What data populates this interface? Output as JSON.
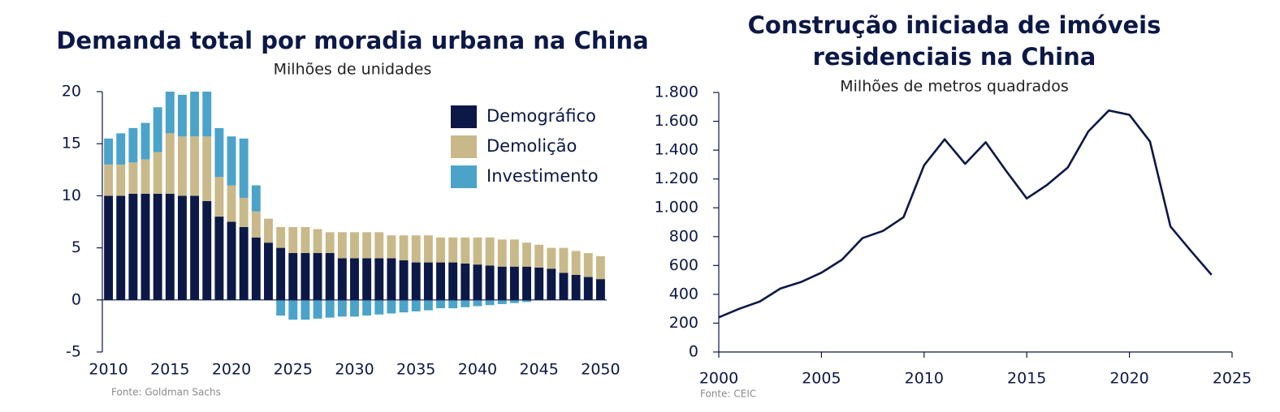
{
  "chart_data": [
    {
      "type": "bar",
      "title": "Demanda total por moradia urbana na China",
      "subtitle": "Milhões de unidades",
      "source": "Fonte: Goldman Sachs",
      "categories": [
        "2010",
        null,
        null,
        null,
        null,
        "2015",
        null,
        null,
        null,
        null,
        "2020",
        null,
        null,
        null,
        null,
        "2025",
        null,
        null,
        null,
        null,
        "2030",
        null,
        null,
        null,
        null,
        "2035",
        null,
        null,
        null,
        null,
        "2040",
        null,
        null,
        null,
        null,
        "2045",
        null,
        null,
        null,
        null,
        "2050"
      ],
      "series": [
        {
          "name": "Demográfico",
          "color": "#0c1846",
          "values": [
            10,
            10,
            10.2,
            10.2,
            10.2,
            10.2,
            10,
            10,
            9.5,
            8,
            7.5,
            7,
            6,
            5.5,
            5,
            4.5,
            4.5,
            4.5,
            4.5,
            4,
            4,
            4,
            4,
            4,
            3.8,
            3.6,
            3.6,
            3.6,
            3.6,
            3.5,
            3.4,
            3.3,
            3.2,
            3.2,
            3.2,
            3.1,
            3,
            2.6,
            2.4,
            2.2,
            2
          ]
        },
        {
          "name": "Demolição",
          "color": "#c9b98a",
          "values": [
            3,
            3,
            3,
            3.3,
            4,
            5.8,
            5.7,
            5.7,
            6.2,
            3.8,
            3.5,
            2.8,
            2.5,
            2.3,
            2,
            2.5,
            2.5,
            2.3,
            2,
            2.5,
            2.5,
            2.5,
            2.5,
            2.2,
            2.4,
            2.6,
            2.6,
            2.4,
            2.4,
            2.5,
            2.6,
            2.7,
            2.6,
            2.6,
            2.3,
            2.2,
            2,
            2.4,
            2.3,
            2.3,
            2.2
          ]
        },
        {
          "name": "Investimento",
          "color": "#4ba3c9",
          "values": [
            2.5,
            3,
            3.3,
            3.5,
            4.3,
            4,
            4,
            4.3,
            4.3,
            4.7,
            4.7,
            5.7,
            2.5,
            0,
            -1.5,
            -1.9,
            -1.9,
            -1.8,
            -1.7,
            -1.6,
            -1.6,
            -1.5,
            -1.4,
            -1.3,
            -1.2,
            -1.1,
            -1,
            -0.8,
            -0.8,
            -0.7,
            -0.6,
            -0.5,
            -0.4,
            -0.3,
            -0.2,
            0,
            0,
            0,
            0,
            0,
            0
          ]
        }
      ],
      "ylim": [
        -5,
        20
      ],
      "yticks": [
        -5,
        0,
        5,
        10,
        15,
        20
      ],
      "stacked": true,
      "legend": "upper right"
    },
    {
      "type": "line",
      "title": [
        "Construção iniciada de imóveis",
        "residenciais na China"
      ],
      "subtitle": "Milhões de metros quadrados",
      "source": "Fonte: CEIC",
      "x": [
        2000,
        2001,
        2002,
        2003,
        2004,
        2005,
        2006,
        2007,
        2008,
        2009,
        2010,
        2011,
        2012,
        2013,
        2014,
        2015,
        2016,
        2017,
        2018,
        2019,
        2020,
        2021,
        2022,
        2023,
        2024
      ],
      "series": [
        {
          "color": "#0c1846",
          "values": [
            240,
            300,
            350,
            440,
            485,
            550,
            640,
            790,
            840,
            935,
            1295,
            1475,
            1305,
            1455,
            1255,
            1065,
            1160,
            1280,
            1530,
            1675,
            1645,
            1460,
            870,
            700,
            535
          ]
        }
      ],
      "xlim": [
        2000,
        2025
      ],
      "xticks": [
        2000,
        2005,
        2010,
        2015,
        2020,
        2025
      ],
      "ylim": [
        0,
        1800
      ],
      "yticks": [
        0,
        200,
        400,
        600,
        800,
        {
          "value": 1000,
          "label": "1.000"
        },
        {
          "value": 1200,
          "label": "1.200"
        },
        {
          "value": 1400,
          "label": "1.400"
        },
        {
          "value": 1600,
          "label": "1.600"
        },
        {
          "value": 1800,
          "label": "1.800"
        }
      ]
    }
  ]
}
